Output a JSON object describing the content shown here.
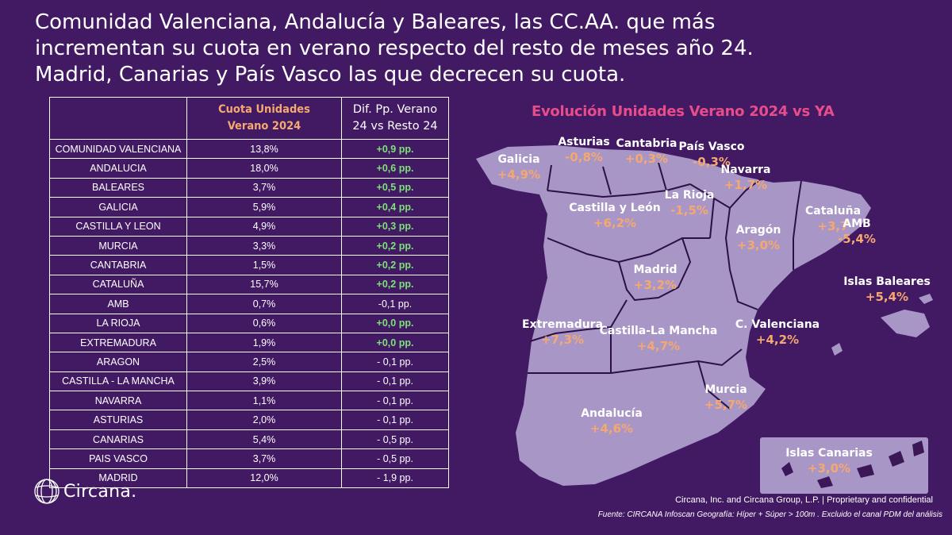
{
  "headline": {
    "line1": "Comunidad Valenciana, Andalucía y Baleares, las CC.AA. que más",
    "line2": "incrementan su cuota en verano respecto del resto de meses año 24.",
    "line3": "Madrid, Canarias y País Vasco las que decrecen su cuota."
  },
  "table": {
    "header_col1": "",
    "header_col2_line1": "Cuota Unidades",
    "header_col2_line2": "Verano 2024",
    "header_col3_line1": "Dif. Pp. Verano",
    "header_col3_line2": "24 vs Resto 24",
    "rows": [
      {
        "region": "COMUNIDAD VALENCIANA",
        "cuota": "13,8%",
        "dif": "+0,9 pp.",
        "trend": "pos"
      },
      {
        "region": "ANDALUCIA",
        "cuota": "18,0%",
        "dif": "+0,6 pp.",
        "trend": "pos"
      },
      {
        "region": "BALEARES",
        "cuota": "3,7%",
        "dif": "+0,5 pp.",
        "trend": "pos"
      },
      {
        "region": "GALICIA",
        "cuota": "5,9%",
        "dif": "+0,4 pp.",
        "trend": "pos"
      },
      {
        "region": "CASTILLA Y LEON",
        "cuota": "4,9%",
        "dif": "+0,3 pp.",
        "trend": "pos"
      },
      {
        "region": "MURCIA",
        "cuota": "3,3%",
        "dif": "+0,2 pp.",
        "trend": "pos"
      },
      {
        "region": "CANTABRIA",
        "cuota": "1,5%",
        "dif": "+0,2 pp.",
        "trend": "pos"
      },
      {
        "region": "CATALUÑA",
        "cuota": "15,7%",
        "dif": "+0,2 pp.",
        "trend": "pos"
      },
      {
        "region": "AMB",
        "cuota": "0,7%",
        "dif": "-0,1 pp.",
        "trend": "neg"
      },
      {
        "region": "LA RIOJA",
        "cuota": "0,6%",
        "dif": "+0,0 pp.",
        "trend": "pos"
      },
      {
        "region": "EXTREMADURA",
        "cuota": "1,9%",
        "dif": "+0,0 pp.",
        "trend": "pos"
      },
      {
        "region": "ARAGON",
        "cuota": "2,5%",
        "dif": "- 0,1 pp.",
        "trend": "neg"
      },
      {
        "region": "CASTILLA - LA MANCHA",
        "cuota": "3,9%",
        "dif": "- 0,1 pp.",
        "trend": "neg"
      },
      {
        "region": "NAVARRA",
        "cuota": "1,1%",
        "dif": "- 0,1 pp.",
        "trend": "neg"
      },
      {
        "region": "ASTURIAS",
        "cuota": "2,0%",
        "dif": "- 0,1 pp.",
        "trend": "neg"
      },
      {
        "region": "CANARIAS",
        "cuota": "5,4%",
        "dif": "- 0,5 pp.",
        "trend": "neg"
      },
      {
        "region": "PAIS VASCO",
        "cuota": "3,7%",
        "dif": "- 0,5 pp.",
        "trend": "neg"
      },
      {
        "region": "MADRID",
        "cuota": "12,0%",
        "dif": "- 1,9 pp.",
        "trend": "neg"
      }
    ]
  },
  "map": {
    "title": "Evolución Unidades Verano 2024 vs YA",
    "regions": [
      {
        "name": "Asturias",
        "value": "-0,8%"
      },
      {
        "name": "Cantabria",
        "value": "+0,3%"
      },
      {
        "name": "País Vasco",
        "value": "-0,3%"
      },
      {
        "name": "Galicia",
        "value": "+4,9%"
      },
      {
        "name": "Navarra",
        "value": "+1,7%"
      },
      {
        "name": "La Rioja",
        "value": "-1,5%"
      },
      {
        "name": "Castilla y León",
        "value": "+6,2%"
      },
      {
        "name": "Cataluña",
        "value": "+3,7"
      },
      {
        "name": "AMB",
        "value": "-5,4%"
      },
      {
        "name": "Aragón",
        "value": "+3,0%"
      },
      {
        "name": "Madrid",
        "value": "+3,2%"
      },
      {
        "name": "Islas Baleares",
        "value": "+5,4%"
      },
      {
        "name": "Extremadura",
        "value": "+7,3%"
      },
      {
        "name": "Castilla-La Mancha",
        "value": "+4,7%"
      },
      {
        "name": "C. Valenciana",
        "value": "+4,2%"
      },
      {
        "name": "Murcia",
        "value": "+5,7%"
      },
      {
        "name": "Andalucía",
        "value": "+4,6%"
      },
      {
        "name": "Islas Canarias",
        "value": "+3,0%"
      }
    ]
  },
  "logo": {
    "text": "Circana."
  },
  "footer": {
    "legal": "Circana, Inc. and Circana Group, L.P. |  Proprietary and confidential",
    "source": "Fuente: CIRCANA Infoscan Geografía: Híper + Súper > 100m . Excluido el canal PDM del análisis"
  },
  "colors": {
    "background": "#421a63",
    "positive": "#7ee27a",
    "title_accent": "#e74d8a",
    "value_orange": "#f5a86f",
    "map_fill": "#a896c7"
  }
}
